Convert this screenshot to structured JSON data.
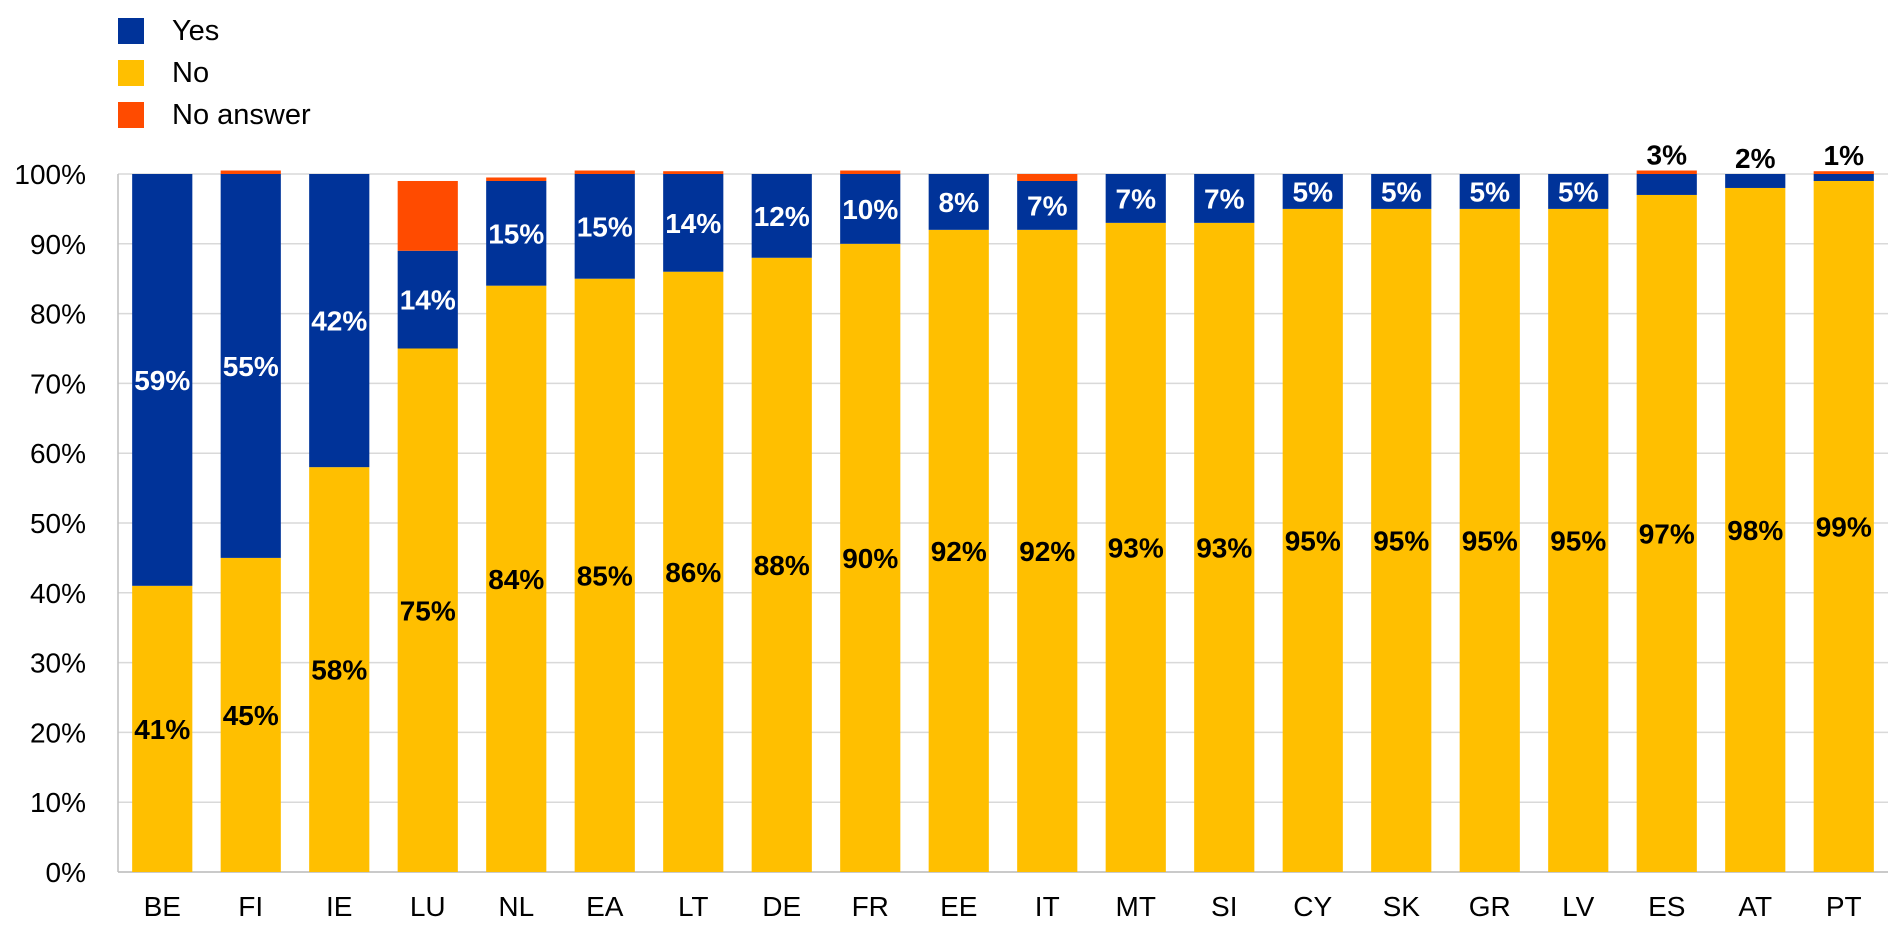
{
  "colors": {
    "yes": "#003399",
    "no": "#FFBF00",
    "no_answer": "#FF4B00"
  },
  "legend": [
    {
      "key": "yes",
      "label": "Yes"
    },
    {
      "key": "no",
      "label": "No"
    },
    {
      "key": "no_answer",
      "label": "No answer"
    }
  ],
  "chart_data": {
    "type": "bar",
    "stacked": true,
    "categories": [
      "BE",
      "FI",
      "IE",
      "LU",
      "NL",
      "EA",
      "LT",
      "DE",
      "FR",
      "EE",
      "IT",
      "MT",
      "SI",
      "CY",
      "SK",
      "GR",
      "LV",
      "ES",
      "AT",
      "PT"
    ],
    "series": [
      {
        "name": "No",
        "key": "no",
        "values": [
          41,
          45,
          58,
          75,
          84,
          85,
          86,
          88,
          90,
          92,
          92,
          93,
          93,
          95,
          95,
          95,
          95,
          97,
          98,
          99
        ],
        "labels": [
          "41%",
          "45%",
          "58%",
          "75%",
          "84%",
          "85%",
          "86%",
          "88%",
          "90%",
          "92%",
          "92%",
          "93%",
          "93%",
          "95%",
          "95%",
          "95%",
          "95%",
          "97%",
          "98%",
          "99%"
        ]
      },
      {
        "name": "Yes",
        "key": "yes",
        "values": [
          59,
          55,
          42,
          14,
          15,
          15,
          14,
          12,
          10,
          8,
          7,
          7,
          7,
          5,
          5,
          5,
          5,
          3,
          2,
          1
        ],
        "labels": [
          "59%",
          "55%",
          "42%",
          "14%",
          "15%",
          "15%",
          "14%",
          "12%",
          "10%",
          "8%",
          "7%",
          "7%",
          "7%",
          "5%",
          "5%",
          "5%",
          "5%",
          "3%",
          "2%",
          "1%"
        ]
      },
      {
        "name": "No answer",
        "key": "no_answer",
        "values": [
          0,
          0.5,
          0,
          10,
          0.5,
          0.5,
          0.4,
          0,
          0.5,
          0,
          1,
          0,
          0,
          0,
          0,
          0,
          0,
          0.5,
          0,
          0.4
        ],
        "labels": []
      }
    ],
    "ylim": [
      0,
      100
    ],
    "yticks": [
      0,
      10,
      20,
      30,
      40,
      50,
      60,
      70,
      80,
      90,
      100
    ],
    "ytick_labels": [
      "0%",
      "10%",
      "20%",
      "30%",
      "40%",
      "50%",
      "60%",
      "70%",
      "80%",
      "90%",
      "100%"
    ],
    "grid": true,
    "legend_position": "top-left"
  }
}
